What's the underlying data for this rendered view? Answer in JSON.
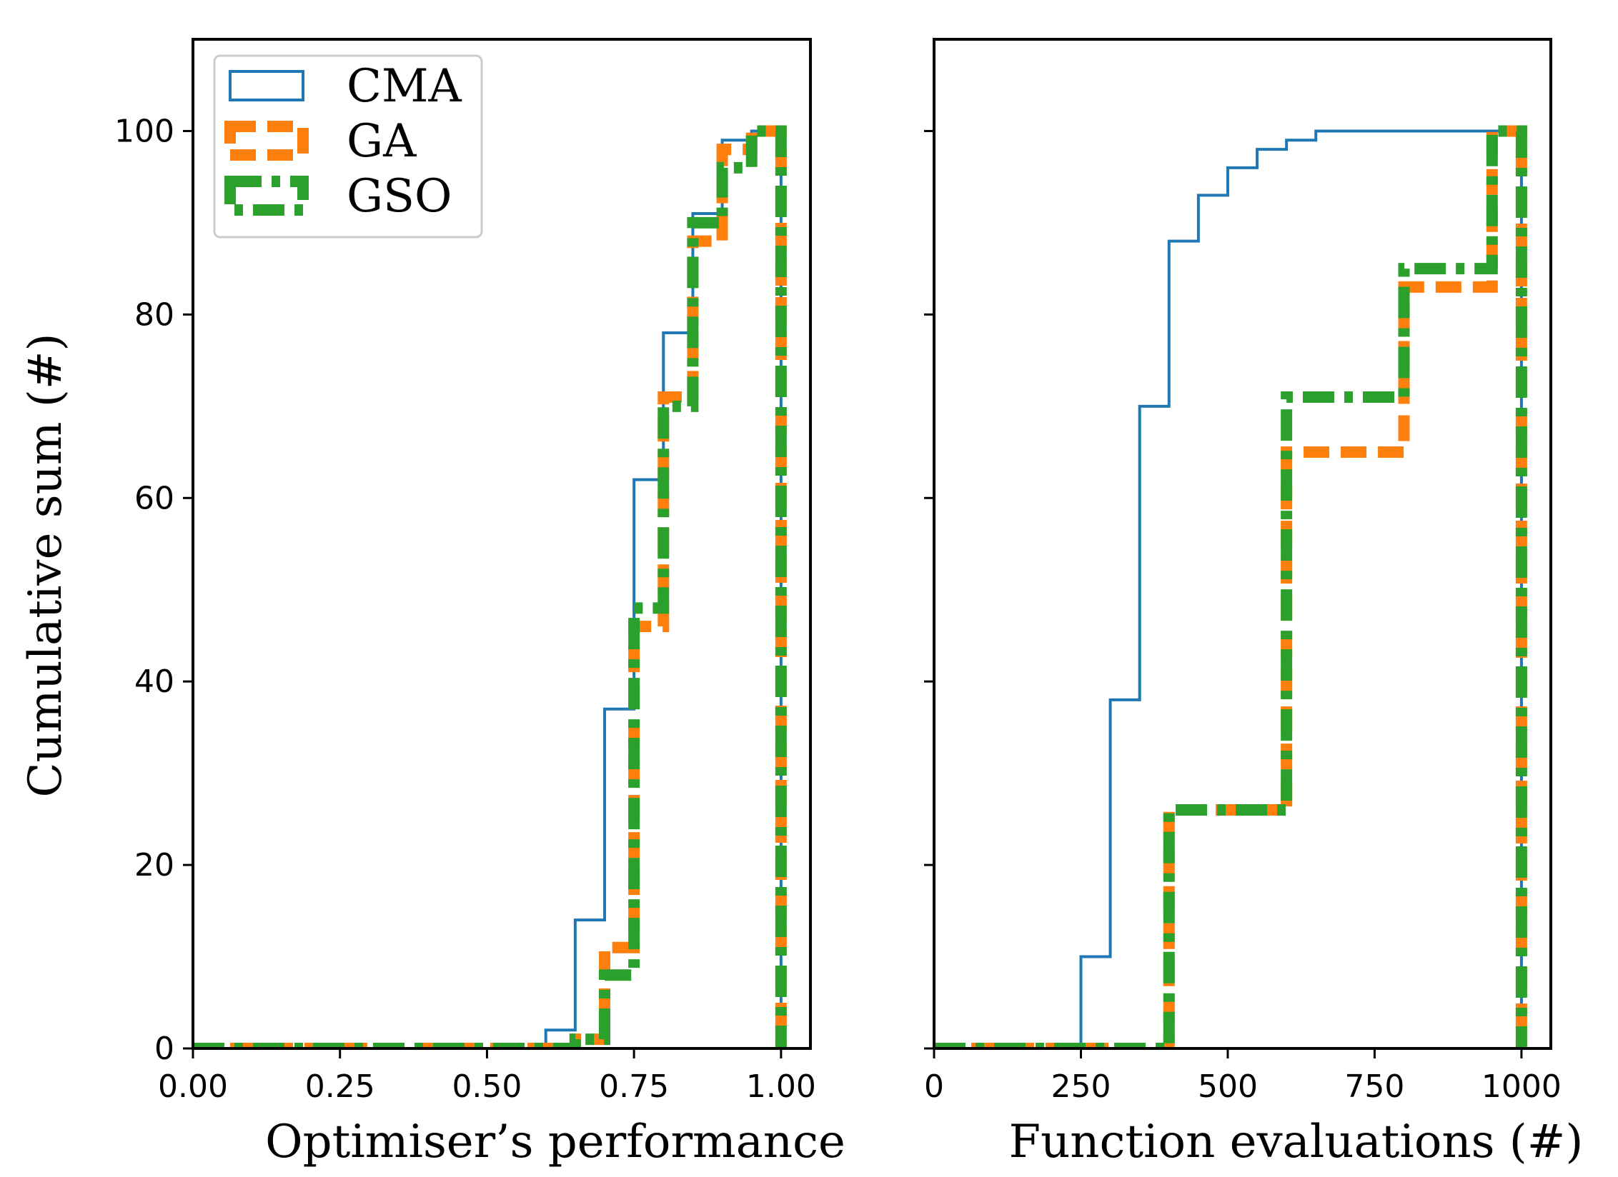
{
  "chart_data": [
    {
      "type": "step",
      "xlabel": "Optimiser’s performance",
      "ylabel": "Cumulative sum (#)",
      "xlim": [
        0,
        1.05
      ],
      "ylim": [
        0,
        110
      ],
      "xticks": [
        "0.00",
        "0.25",
        "0.50",
        "0.75",
        "1.00"
      ],
      "xtick_values": [
        0,
        0.25,
        0.5,
        0.75,
        1.0
      ],
      "yticks": [
        "0",
        "20",
        "40",
        "60",
        "80",
        "100"
      ],
      "ytick_values": [
        0,
        20,
        40,
        60,
        80,
        100
      ],
      "legend": "upper-left",
      "series": [
        {
          "name": "CMA",
          "color": "#1f77b4",
          "style": "solid",
          "points": [
            [
              0,
              0
            ],
            [
              0.6,
              0
            ],
            [
              0.6,
              2
            ],
            [
              0.65,
              2
            ],
            [
              0.65,
              14
            ],
            [
              0.7,
              14
            ],
            [
              0.7,
              37
            ],
            [
              0.75,
              37
            ],
            [
              0.75,
              62
            ],
            [
              0.8,
              62
            ],
            [
              0.8,
              78
            ],
            [
              0.85,
              78
            ],
            [
              0.85,
              91
            ],
            [
              0.9,
              91
            ],
            [
              0.9,
              99
            ],
            [
              0.95,
              99
            ],
            [
              0.95,
              100
            ],
            [
              1.0,
              100
            ],
            [
              1.0,
              0
            ]
          ]
        },
        {
          "name": "GA",
          "color": "#ff7f0e",
          "style": "dashed",
          "points": [
            [
              0,
              0
            ],
            [
              0.65,
              0
            ],
            [
              0.65,
              1
            ],
            [
              0.7,
              1
            ],
            [
              0.7,
              11
            ],
            [
              0.75,
              11
            ],
            [
              0.75,
              46
            ],
            [
              0.8,
              46
            ],
            [
              0.8,
              71
            ],
            [
              0.85,
              71
            ],
            [
              0.85,
              88
            ],
            [
              0.9,
              88
            ],
            [
              0.9,
              98
            ],
            [
              0.95,
              98
            ],
            [
              0.95,
              100
            ],
            [
              1.0,
              100
            ],
            [
              1.0,
              0
            ]
          ]
        },
        {
          "name": "GSO",
          "color": "#2ca02c",
          "style": "dashdot",
          "points": [
            [
              0,
              0
            ],
            [
              0.65,
              0
            ],
            [
              0.65,
              1
            ],
            [
              0.7,
              1
            ],
            [
              0.7,
              8
            ],
            [
              0.75,
              8
            ],
            [
              0.75,
              48
            ],
            [
              0.8,
              48
            ],
            [
              0.8,
              70
            ],
            [
              0.85,
              70
            ],
            [
              0.85,
              90
            ],
            [
              0.9,
              90
            ],
            [
              0.9,
              96
            ],
            [
              0.95,
              96
            ],
            [
              0.95,
              100
            ],
            [
              1.0,
              100
            ],
            [
              1.0,
              0
            ]
          ]
        }
      ]
    },
    {
      "type": "step",
      "xlabel": "Function evaluations (#)",
      "ylabel": "",
      "xlim": [
        0,
        1050
      ],
      "ylim": [
        0,
        110
      ],
      "xticks": [
        "0",
        "250",
        "500",
        "750",
        "1000"
      ],
      "xtick_values": [
        0,
        250,
        500,
        750,
        1000
      ],
      "yticks": [],
      "ytick_values": [
        0,
        20,
        40,
        60,
        80,
        100
      ],
      "series": [
        {
          "name": "CMA",
          "color": "#1f77b4",
          "style": "solid",
          "points": [
            [
              0,
              0
            ],
            [
              250,
              0
            ],
            [
              250,
              10
            ],
            [
              300,
              10
            ],
            [
              300,
              38
            ],
            [
              350,
              38
            ],
            [
              350,
              70
            ],
            [
              400,
              70
            ],
            [
              400,
              88
            ],
            [
              450,
              88
            ],
            [
              450,
              93
            ],
            [
              500,
              93
            ],
            [
              500,
              96
            ],
            [
              550,
              96
            ],
            [
              550,
              98
            ],
            [
              600,
              98
            ],
            [
              600,
              99
            ],
            [
              650,
              99
            ],
            [
              650,
              100
            ],
            [
              1000,
              100
            ],
            [
              1000,
              0
            ]
          ]
        },
        {
          "name": "GA",
          "color": "#ff7f0e",
          "style": "dashed",
          "points": [
            [
              0,
              0
            ],
            [
              400,
              0
            ],
            [
              400,
              26
            ],
            [
              600,
              26
            ],
            [
              600,
              65
            ],
            [
              800,
              65
            ],
            [
              800,
              83
            ],
            [
              950,
              83
            ],
            [
              950,
              100
            ],
            [
              1000,
              100
            ],
            [
              1000,
              0
            ]
          ]
        },
        {
          "name": "GSO",
          "color": "#2ca02c",
          "style": "dashdot",
          "points": [
            [
              0,
              0
            ],
            [
              400,
              0
            ],
            [
              400,
              26
            ],
            [
              600,
              26
            ],
            [
              600,
              71
            ],
            [
              800,
              71
            ],
            [
              800,
              85
            ],
            [
              950,
              85
            ],
            [
              950,
              100
            ],
            [
              1000,
              100
            ],
            [
              1000,
              0
            ]
          ]
        }
      ]
    }
  ]
}
